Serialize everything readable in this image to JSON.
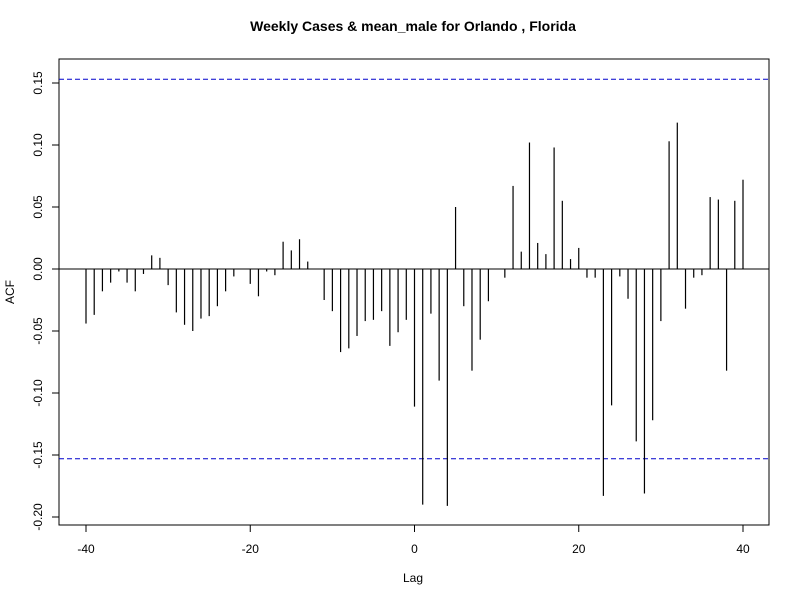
{
  "chart_data": {
    "type": "bar",
    "title": "Weekly Cases & mean_male for Orlando , Florida",
    "xlabel": "Lag",
    "ylabel": "ACF",
    "xlim": [
      -42,
      42
    ],
    "ylim": [
      -0.205,
      0.165
    ],
    "x_ticks": [
      -40,
      -20,
      0,
      20,
      40
    ],
    "x_tick_labels": [
      "-40",
      "-20",
      "0",
      "20",
      "40"
    ],
    "y_ticks": [
      -0.2,
      -0.15,
      -0.1,
      -0.05,
      0.0,
      0.05,
      0.1,
      0.15
    ],
    "y_tick_labels": [
      "-0.20",
      "-0.15",
      "-0.10",
      "-0.05",
      "0.00",
      "0.05",
      "0.10",
      "0.15"
    ],
    "confidence_bound": 0.153,
    "confidence_color": "#0000cc",
    "grid": false,
    "lags": [
      -40,
      -39,
      -38,
      -37,
      -36,
      -35,
      -34,
      -33,
      -32,
      -31,
      -30,
      -29,
      -28,
      -27,
      -26,
      -25,
      -24,
      -23,
      -22,
      -21,
      -20,
      -19,
      -18,
      -17,
      -16,
      -15,
      -14,
      -13,
      -12,
      -11,
      -10,
      -9,
      -8,
      -7,
      -6,
      -5,
      -4,
      -3,
      -2,
      -1,
      0,
      1,
      2,
      3,
      4,
      5,
      6,
      7,
      8,
      9,
      10,
      11,
      12,
      13,
      14,
      15,
      16,
      17,
      18,
      19,
      20,
      21,
      22,
      23,
      24,
      25,
      26,
      27,
      28,
      29,
      30,
      31,
      32,
      33,
      34,
      35,
      36,
      37,
      38,
      39,
      40
    ],
    "values": [
      -0.044,
      -0.037,
      -0.018,
      -0.011,
      -0.002,
      -0.011,
      -0.018,
      -0.004,
      0.011,
      0.009,
      -0.013,
      -0.035,
      -0.045,
      -0.05,
      -0.04,
      -0.038,
      -0.03,
      -0.018,
      -0.006,
      0.0,
      -0.012,
      -0.022,
      -0.002,
      -0.005,
      0.022,
      0.015,
      0.024,
      0.006,
      0.0,
      -0.025,
      -0.034,
      -0.067,
      -0.064,
      -0.054,
      -0.042,
      -0.041,
      -0.034,
      -0.062,
      -0.051,
      -0.041,
      -0.111,
      -0.19,
      -0.036,
      -0.09,
      -0.191,
      0.05,
      -0.03,
      -0.082,
      -0.057,
      -0.026,
      0.0,
      -0.007,
      0.067,
      0.014,
      0.102,
      0.021,
      0.012,
      0.098,
      0.055,
      0.008,
      0.017,
      -0.007,
      -0.007,
      -0.183,
      -0.11,
      -0.006,
      -0.024,
      -0.139,
      -0.181,
      -0.122,
      -0.042,
      0.103,
      0.118,
      -0.032,
      -0.007,
      -0.005,
      0.058,
      0.056,
      -0.082,
      0.055,
      0.072
    ]
  }
}
